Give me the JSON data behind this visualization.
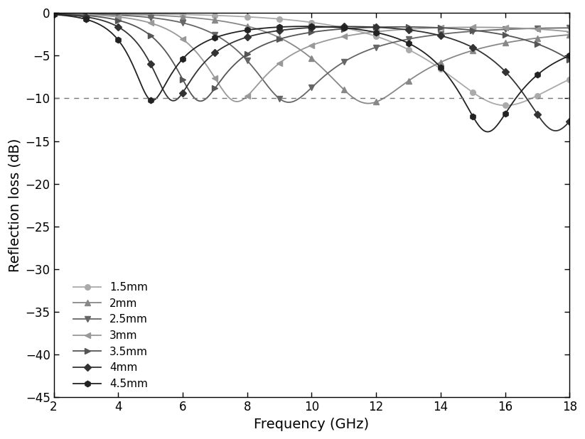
{
  "freq_range": [
    2,
    18
  ],
  "ylim": [
    -45,
    0
  ],
  "yticks": [
    0,
    -5,
    -10,
    -15,
    -20,
    -25,
    -30,
    -35,
    -40,
    -45
  ],
  "xticks": [
    2,
    4,
    6,
    8,
    10,
    12,
    14,
    16,
    18
  ],
  "xlabel": "Frequency (GHz)",
  "ylabel": "Reflection loss (dB)",
  "dashed_line_y": -10,
  "series": [
    {
      "label": "1.5mm",
      "color": "#aaaaaa",
      "marker": "o",
      "markersize": 5.5,
      "linewidth": 1.3,
      "thickness": 1.5,
      "eps_real": 14.0,
      "eps_imag": 1.8,
      "mu_real": 1.05,
      "mu_imag": 0.05
    },
    {
      "label": "2mm",
      "color": "#888888",
      "marker": "^",
      "markersize": 6,
      "linewidth": 1.3,
      "thickness": 2.0,
      "eps_real": 14.0,
      "eps_imag": 1.8,
      "mu_real": 1.05,
      "mu_imag": 0.05
    },
    {
      "label": "2.5mm",
      "color": "#666666",
      "marker": "v",
      "markersize": 6,
      "linewidth": 1.3,
      "thickness": 2.5,
      "eps_real": 14.0,
      "eps_imag": 1.8,
      "mu_real": 1.05,
      "mu_imag": 0.05
    },
    {
      "label": "3mm",
      "color": "#999999",
      "marker": "<",
      "markersize": 6,
      "linewidth": 1.3,
      "thickness": 3.0,
      "eps_real": 14.0,
      "eps_imag": 1.8,
      "mu_real": 1.05,
      "mu_imag": 0.05
    },
    {
      "label": "3.5mm",
      "color": "#555555",
      "marker": ">",
      "markersize": 6,
      "linewidth": 1.3,
      "thickness": 3.5,
      "eps_real": 14.0,
      "eps_imag": 1.8,
      "mu_real": 1.05,
      "mu_imag": 0.05
    },
    {
      "label": "4mm",
      "color": "#333333",
      "marker": "D",
      "markersize": 5,
      "linewidth": 1.3,
      "thickness": 4.0,
      "eps_real": 14.0,
      "eps_imag": 1.8,
      "mu_real": 1.05,
      "mu_imag": 0.05
    },
    {
      "label": "4.5mm",
      "color": "#222222",
      "marker": "h",
      "markersize": 6,
      "linewidth": 1.3,
      "thickness": 4.5,
      "eps_real": 14.0,
      "eps_imag": 1.8,
      "mu_real": 1.05,
      "mu_imag": 0.05
    }
  ],
  "n_points": 321,
  "background_color": "#ffffff",
  "legend_loc": "lower left",
  "legend_fontsize": 11
}
